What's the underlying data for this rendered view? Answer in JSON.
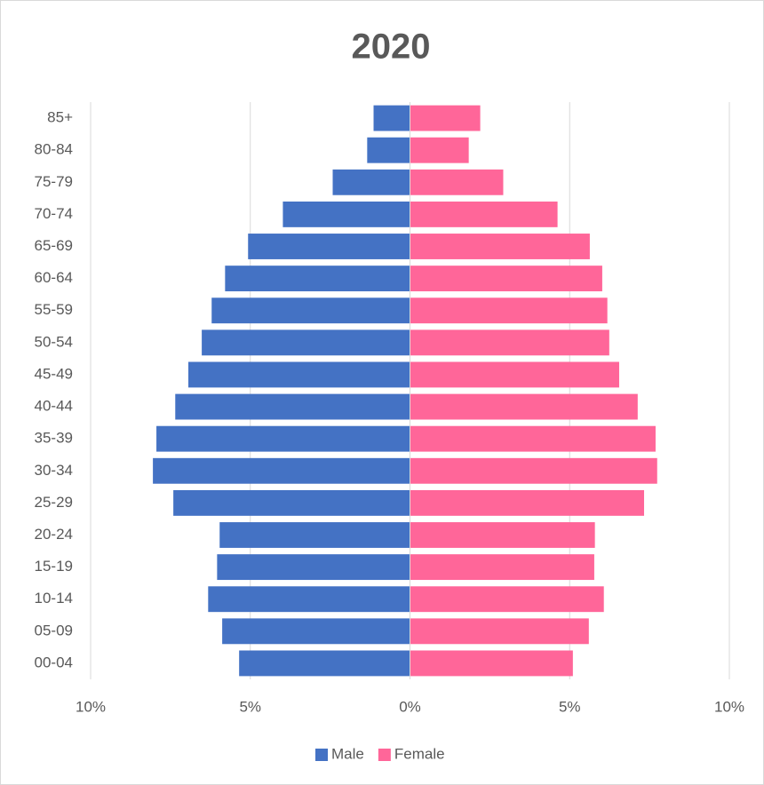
{
  "chart_data": {
    "type": "pyramid",
    "title": "2020",
    "categories": [
      "85+",
      "80-84",
      "75-79",
      "70-74",
      "65-69",
      "60-64",
      "55-59",
      "50-54",
      "45-49",
      "40-44",
      "35-39",
      "30-34",
      "25-29",
      "20-24",
      "15-19",
      "10-14",
      "05-09",
      "00-04"
    ],
    "series": [
      {
        "name": "Male",
        "color": "#4472c4",
        "values": [
          -1.14,
          -1.34,
          -2.42,
          -3.98,
          -5.07,
          -5.79,
          -6.21,
          -6.52,
          -6.94,
          -7.35,
          -7.94,
          -8.05,
          -7.41,
          -5.96,
          -6.04,
          -6.32,
          -5.88,
          -5.35
        ]
      },
      {
        "name": "Female",
        "color": "#ff6699",
        "values": [
          2.2,
          1.84,
          2.92,
          4.62,
          5.63,
          6.02,
          6.18,
          6.24,
          6.55,
          7.13,
          7.69,
          7.74,
          7.33,
          5.79,
          5.77,
          6.07,
          5.6,
          5.1
        ]
      }
    ],
    "xlim": [
      -10,
      10
    ],
    "xticks": [
      {
        "value": -10,
        "label": "10%"
      },
      {
        "value": -5,
        "label": "5%"
      },
      {
        "value": 0,
        "label": "0%"
      },
      {
        "value": 5,
        "label": "5%"
      },
      {
        "value": 10,
        "label": "10%"
      }
    ],
    "grid": true,
    "legend": "bottom"
  }
}
